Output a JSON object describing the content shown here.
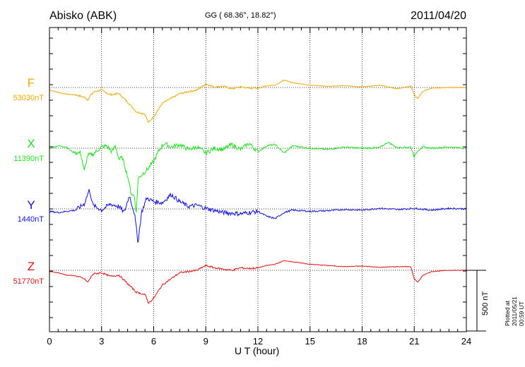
{
  "header": {
    "station": "Abisko (ABK)",
    "coords": "GG ( 68.36°,  18.82°)",
    "date": "2011/04/20"
  },
  "footer": {
    "plotted": "Plotted at 2011/05/21 00:59 UT",
    "scale_label": "500 nT"
  },
  "chart_data": {
    "type": "line",
    "xlabel": "U T (hour)",
    "xlim": [
      0,
      24
    ],
    "xticks": [
      0,
      3,
      6,
      9,
      12,
      15,
      18,
      21,
      24
    ],
    "x_minor_step_hours": 0.5,
    "grid": "dotted vertical every 3 h",
    "scale_bar_nT": 500,
    "series": [
      {
        "name": "F",
        "baseline_label": "53030nT",
        "baseline_nT": 53030,
        "color": "#f0a800",
        "x": [
          0,
          0.5,
          1,
          1.5,
          2,
          2.2,
          2.5,
          3,
          3.5,
          4,
          4.5,
          5,
          5.5,
          5.7,
          6,
          6.5,
          7,
          7.5,
          8,
          8.5,
          9,
          9.5,
          10,
          10.5,
          11,
          11.5,
          12,
          12.5,
          13,
          13.5,
          14,
          15,
          16,
          17,
          18,
          19,
          20,
          20.8,
          21,
          21.2,
          21.5,
          22,
          23,
          24
        ],
        "dev_nT": [
          -20,
          -40,
          -55,
          -60,
          -80,
          -100,
          -40,
          -20,
          -60,
          -50,
          -120,
          -200,
          -220,
          -290,
          -240,
          -130,
          -90,
          -50,
          -35,
          -20,
          30,
          5,
          10,
          -10,
          5,
          -5,
          -5,
          15,
          20,
          60,
          40,
          20,
          10,
          15,
          5,
          20,
          -10,
          10,
          -60,
          -90,
          -30,
          -5,
          0,
          0
        ]
      },
      {
        "name": "X",
        "baseline_label": "11390nT",
        "baseline_nT": 11390,
        "color": "#22e022",
        "x": [
          0,
          0.5,
          1,
          1.3,
          1.8,
          2,
          2.2,
          2.5,
          3,
          3.3,
          3.6,
          3.8,
          4,
          4.2,
          4.5,
          4.7,
          4.9,
          5,
          5.1,
          5.3,
          5.6,
          6,
          6.3,
          6.6,
          7,
          7.5,
          8,
          8.5,
          9,
          9.5,
          10,
          10.5,
          11,
          11.5,
          12,
          12.5,
          13,
          13.5,
          14,
          15,
          16,
          17,
          18,
          19,
          19.5,
          20,
          20.8,
          21,
          21.2,
          21.5,
          22,
          23,
          24
        ],
        "dev_nT": [
          0,
          20,
          10,
          -30,
          -40,
          -190,
          -60,
          -50,
          10,
          20,
          -30,
          20,
          -90,
          -80,
          -230,
          -370,
          -400,
          -540,
          -250,
          -220,
          -180,
          -110,
          -20,
          40,
          10,
          30,
          -10,
          10,
          -40,
          0,
          -10,
          30,
          -10,
          40,
          -30,
          20,
          30,
          -40,
          20,
          0,
          -10,
          10,
          0,
          5,
          50,
          5,
          10,
          -70,
          -20,
          10,
          0,
          10,
          0
        ]
      },
      {
        "name": "Y",
        "baseline_label": "1440nT",
        "baseline_nT": 1440,
        "color": "#1010e0",
        "x": [
          0,
          0.5,
          1,
          1.5,
          2,
          2.3,
          2.5,
          3,
          3.5,
          4,
          4.3,
          4.6,
          4.9,
          5.1,
          5.3,
          5.6,
          6,
          6.5,
          7,
          7.5,
          8,
          8.5,
          9,
          10,
          11,
          12,
          12.5,
          13,
          13.5,
          14,
          15,
          16,
          17,
          18,
          19,
          20,
          21,
          22,
          23,
          24
        ],
        "dev_nT": [
          -20,
          -30,
          -20,
          -10,
          40,
          160,
          30,
          -10,
          40,
          20,
          -30,
          110,
          -40,
          -280,
          -30,
          90,
          60,
          50,
          120,
          60,
          20,
          30,
          5,
          -30,
          -40,
          -20,
          -60,
          -80,
          -30,
          -10,
          -20,
          -15,
          -5,
          -10,
          5,
          -5,
          5,
          -10,
          5,
          0
        ]
      },
      {
        "name": "Z",
        "baseline_label": "51770nT",
        "baseline_nT": 51770,
        "color": "#e01010",
        "x": [
          0,
          0.5,
          1,
          1.5,
          2,
          2.2,
          2.5,
          3,
          3.5,
          4,
          4.5,
          5,
          5.5,
          5.7,
          6,
          6.5,
          7,
          7.5,
          8,
          8.5,
          9,
          9.5,
          10,
          10.5,
          11,
          11.5,
          12,
          12.5,
          13,
          13.5,
          14,
          15,
          16,
          17,
          18,
          19,
          20,
          20.8,
          21,
          21.2,
          21.5,
          22,
          23,
          24
        ],
        "dev_nT": [
          -10,
          -20,
          -40,
          -45,
          -70,
          -100,
          -30,
          -20,
          -50,
          -40,
          -110,
          -180,
          -200,
          -270,
          -230,
          -120,
          -70,
          -20,
          -10,
          0,
          40,
          20,
          10,
          0,
          20,
          15,
          20,
          40,
          50,
          80,
          70,
          50,
          40,
          30,
          35,
          25,
          30,
          30,
          -70,
          -100,
          -40,
          -10,
          0,
          0
        ]
      }
    ]
  }
}
